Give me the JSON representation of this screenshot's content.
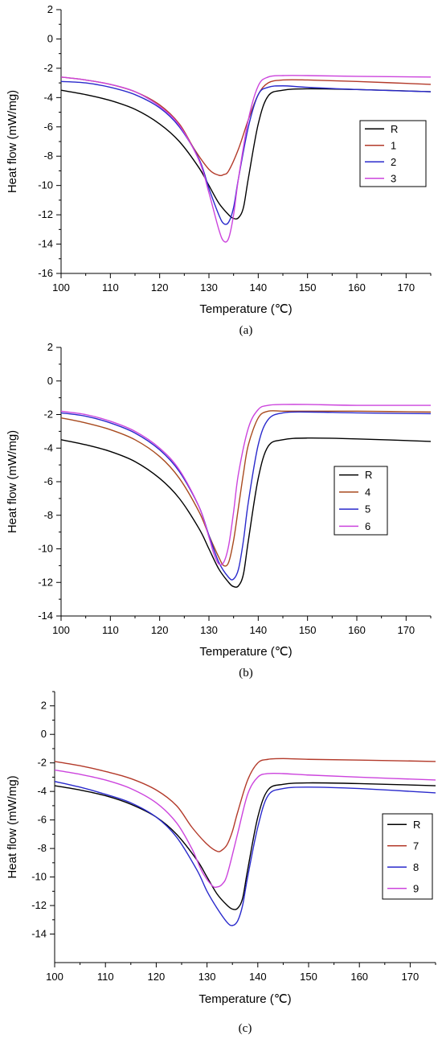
{
  "chart_data": [
    {
      "type": "line",
      "caption": "(a)",
      "xlabel": "Temperature (℃)",
      "ylabel": "Heat flow (mW/mg)",
      "xlim": [
        100,
        175
      ],
      "ylim": [
        -16,
        2
      ],
      "xticks": [
        100,
        110,
        120,
        130,
        140,
        150,
        160,
        170
      ],
      "yticks": [
        -16,
        -14,
        -12,
        -10,
        -8,
        -6,
        -4,
        -2,
        0,
        2
      ],
      "grid": false,
      "legend_position": "right",
      "series": [
        {
          "name": "R",
          "color": "#000000",
          "x": [
            100,
            105,
            110,
            115,
            120,
            124,
            128,
            130,
            132,
            134,
            135,
            136,
            137,
            138,
            140,
            142,
            145,
            150,
            160,
            175
          ],
          "y": [
            -3.5,
            -3.8,
            -4.2,
            -4.8,
            -5.8,
            -7.0,
            -8.8,
            -10.0,
            -11.2,
            -12.0,
            -12.25,
            -12.2,
            -11.5,
            -9.5,
            -5.8,
            -3.9,
            -3.5,
            -3.4,
            -3.45,
            -3.6
          ]
        },
        {
          "name": "1",
          "color": "#b33a2a",
          "x": [
            100,
            105,
            110,
            115,
            120,
            124,
            127,
            130,
            132,
            133,
            134,
            136,
            138,
            140,
            142,
            145,
            150,
            160,
            175
          ],
          "y": [
            -2.6,
            -2.8,
            -3.1,
            -3.6,
            -4.5,
            -5.8,
            -7.5,
            -8.9,
            -9.3,
            -9.25,
            -9.0,
            -7.5,
            -5.5,
            -3.8,
            -3.0,
            -2.8,
            -2.8,
            -2.9,
            -3.1
          ]
        },
        {
          "name": "2",
          "color": "#2a2acc",
          "x": [
            100,
            105,
            110,
            115,
            120,
            124,
            128,
            130,
            132,
            133,
            134,
            135,
            136,
            138,
            140,
            142,
            145,
            150,
            160,
            175
          ],
          "y": [
            -2.9,
            -3.0,
            -3.3,
            -3.8,
            -4.7,
            -6.0,
            -8.2,
            -10.2,
            -12.0,
            -12.6,
            -12.5,
            -11.5,
            -9.5,
            -6.0,
            -3.8,
            -3.3,
            -3.2,
            -3.3,
            -3.45,
            -3.6
          ]
        },
        {
          "name": "3",
          "color": "#cc44dd",
          "x": [
            100,
            105,
            110,
            115,
            120,
            124,
            128,
            130,
            132,
            133,
            134,
            135,
            136,
            138,
            140,
            142,
            145,
            150,
            160,
            175
          ],
          "y": [
            -2.6,
            -2.8,
            -3.1,
            -3.6,
            -4.6,
            -5.9,
            -8.3,
            -10.5,
            -13.0,
            -13.8,
            -13.6,
            -12.0,
            -9.5,
            -5.5,
            -3.2,
            -2.6,
            -2.5,
            -2.5,
            -2.55,
            -2.6
          ]
        }
      ]
    },
    {
      "type": "line",
      "caption": "(b)",
      "xlabel": "Temperature (℃)",
      "ylabel": "Heat flow (mW/mg)",
      "xlim": [
        100,
        175
      ],
      "ylim": [
        -14,
        2
      ],
      "xticks": [
        100,
        110,
        120,
        130,
        140,
        150,
        160,
        170
      ],
      "yticks": [
        -14,
        -12,
        -10,
        -8,
        -6,
        -4,
        -2,
        0,
        2
      ],
      "grid": false,
      "legend_position": "right",
      "series": [
        {
          "name": "R",
          "color": "#000000",
          "x": [
            100,
            105,
            110,
            115,
            120,
            124,
            128,
            130,
            132,
            134,
            135,
            136,
            137,
            138,
            140,
            142,
            145,
            150,
            160,
            175
          ],
          "y": [
            -3.5,
            -3.8,
            -4.2,
            -4.8,
            -5.8,
            -7.0,
            -8.8,
            -10.0,
            -11.2,
            -12.0,
            -12.25,
            -12.2,
            -11.5,
            -9.5,
            -5.8,
            -3.9,
            -3.5,
            -3.4,
            -3.45,
            -3.6
          ]
        },
        {
          "name": "4",
          "color": "#a84a1e",
          "x": [
            100,
            105,
            110,
            115,
            120,
            124,
            128,
            130,
            132,
            133,
            134,
            135,
            136,
            137,
            138,
            140,
            142,
            145,
            150,
            160,
            175
          ],
          "y": [
            -2.2,
            -2.5,
            -2.9,
            -3.5,
            -4.5,
            -5.8,
            -7.8,
            -9.2,
            -10.5,
            -11.0,
            -10.8,
            -9.5,
            -7.5,
            -5.5,
            -3.8,
            -2.2,
            -1.8,
            -1.8,
            -1.8,
            -1.8,
            -1.85
          ]
        },
        {
          "name": "5",
          "color": "#2a2acc",
          "x": [
            100,
            105,
            110,
            115,
            120,
            124,
            128,
            130,
            132,
            134,
            135,
            136,
            137,
            138,
            140,
            142,
            145,
            150,
            160,
            175
          ],
          "y": [
            -1.9,
            -2.1,
            -2.5,
            -3.1,
            -4.1,
            -5.4,
            -7.5,
            -9.2,
            -10.8,
            -11.7,
            -11.8,
            -11.2,
            -9.5,
            -7.2,
            -3.8,
            -2.3,
            -1.9,
            -1.85,
            -1.9,
            -1.95
          ]
        },
        {
          "name": "6",
          "color": "#cc44dd",
          "x": [
            100,
            105,
            110,
            115,
            120,
            124,
            128,
            130,
            131,
            132,
            133,
            134,
            135,
            136,
            138,
            140,
            142,
            145,
            150,
            160,
            175
          ],
          "y": [
            -1.8,
            -2.0,
            -2.4,
            -3.0,
            -4.0,
            -5.3,
            -7.5,
            -9.3,
            -10.3,
            -10.9,
            -10.8,
            -9.8,
            -7.8,
            -5.5,
            -2.8,
            -1.7,
            -1.45,
            -1.4,
            -1.4,
            -1.45,
            -1.45
          ]
        }
      ]
    },
    {
      "type": "line",
      "caption": "(c)",
      "xlabel": "Temperature (℃)",
      "ylabel": "Heat flow (mW/mg)",
      "xlim": [
        100,
        175
      ],
      "ylim": [
        -16,
        3
      ],
      "xticks": [
        100,
        110,
        120,
        130,
        140,
        150,
        160,
        170
      ],
      "yticks": [
        -14,
        -12,
        -10,
        -8,
        -6,
        -4,
        -2,
        0,
        2
      ],
      "grid": false,
      "legend_position": "right",
      "series": [
        {
          "name": "R",
          "color": "#000000",
          "x": [
            100,
            105,
            110,
            115,
            120,
            124,
            128,
            130,
            132,
            134,
            135,
            136,
            137,
            138,
            140,
            142,
            145,
            150,
            160,
            175
          ],
          "y": [
            -3.6,
            -3.9,
            -4.3,
            -4.9,
            -5.8,
            -7.0,
            -8.8,
            -10.0,
            -11.2,
            -12.0,
            -12.25,
            -12.2,
            -11.5,
            -9.5,
            -5.8,
            -3.9,
            -3.5,
            -3.4,
            -3.45,
            -3.6
          ]
        },
        {
          "name": "7",
          "color": "#b33a2a",
          "x": [
            100,
            105,
            110,
            115,
            120,
            124,
            127,
            130,
            132,
            133,
            134,
            135,
            136,
            138,
            140,
            142,
            145,
            150,
            160,
            175
          ],
          "y": [
            -1.9,
            -2.2,
            -2.6,
            -3.1,
            -3.9,
            -5.0,
            -6.5,
            -7.7,
            -8.2,
            -8.1,
            -7.7,
            -6.8,
            -5.5,
            -3.2,
            -2.0,
            -1.75,
            -1.7,
            -1.75,
            -1.8,
            -1.9
          ]
        },
        {
          "name": "8",
          "color": "#2a2acc",
          "x": [
            100,
            105,
            110,
            115,
            120,
            124,
            128,
            130,
            132,
            134,
            135,
            136,
            137,
            138,
            140,
            142,
            145,
            150,
            160,
            175
          ],
          "y": [
            -3.3,
            -3.7,
            -4.2,
            -4.8,
            -5.8,
            -7.2,
            -9.5,
            -11.0,
            -12.2,
            -13.2,
            -13.4,
            -13.1,
            -12.0,
            -10.0,
            -6.5,
            -4.3,
            -3.8,
            -3.7,
            -3.8,
            -4.1
          ]
        },
        {
          "name": "9",
          "color": "#cc44dd",
          "x": [
            100,
            105,
            110,
            115,
            120,
            124,
            127,
            129,
            131,
            132,
            133,
            134,
            136,
            138,
            140,
            142,
            145,
            150,
            160,
            175
          ],
          "y": [
            -2.5,
            -2.8,
            -3.2,
            -3.8,
            -4.8,
            -6.2,
            -8.0,
            -9.6,
            -10.6,
            -10.7,
            -10.5,
            -9.8,
            -7.0,
            -4.2,
            -3.0,
            -2.75,
            -2.75,
            -2.85,
            -3.0,
            -3.2
          ]
        }
      ]
    }
  ]
}
